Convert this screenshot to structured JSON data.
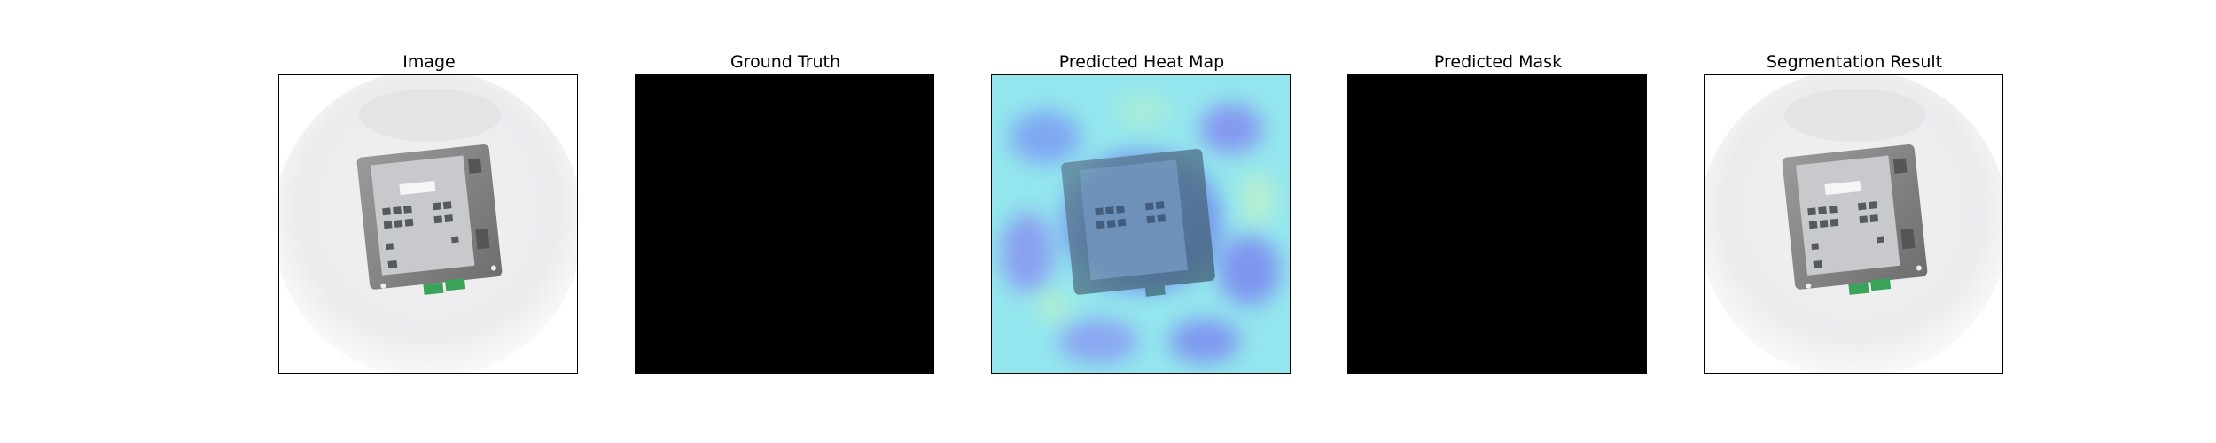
{
  "figure": {
    "panels": [
      {
        "title": "Image",
        "content": "device-photo"
      },
      {
        "title": "Ground Truth",
        "content": "black-mask"
      },
      {
        "title": "Predicted Heat Map",
        "content": "heatmap-overlay"
      },
      {
        "title": "Predicted Mask",
        "content": "black-mask"
      },
      {
        "title": "Segmentation Result",
        "content": "device-photo"
      }
    ],
    "colors": {
      "mask": "#000000",
      "heatmap_base": "#8fe8f0",
      "heatmap_hot": "#6f7df0",
      "device_body": "#8a8a8a",
      "connector": "#3aa35a"
    }
  }
}
